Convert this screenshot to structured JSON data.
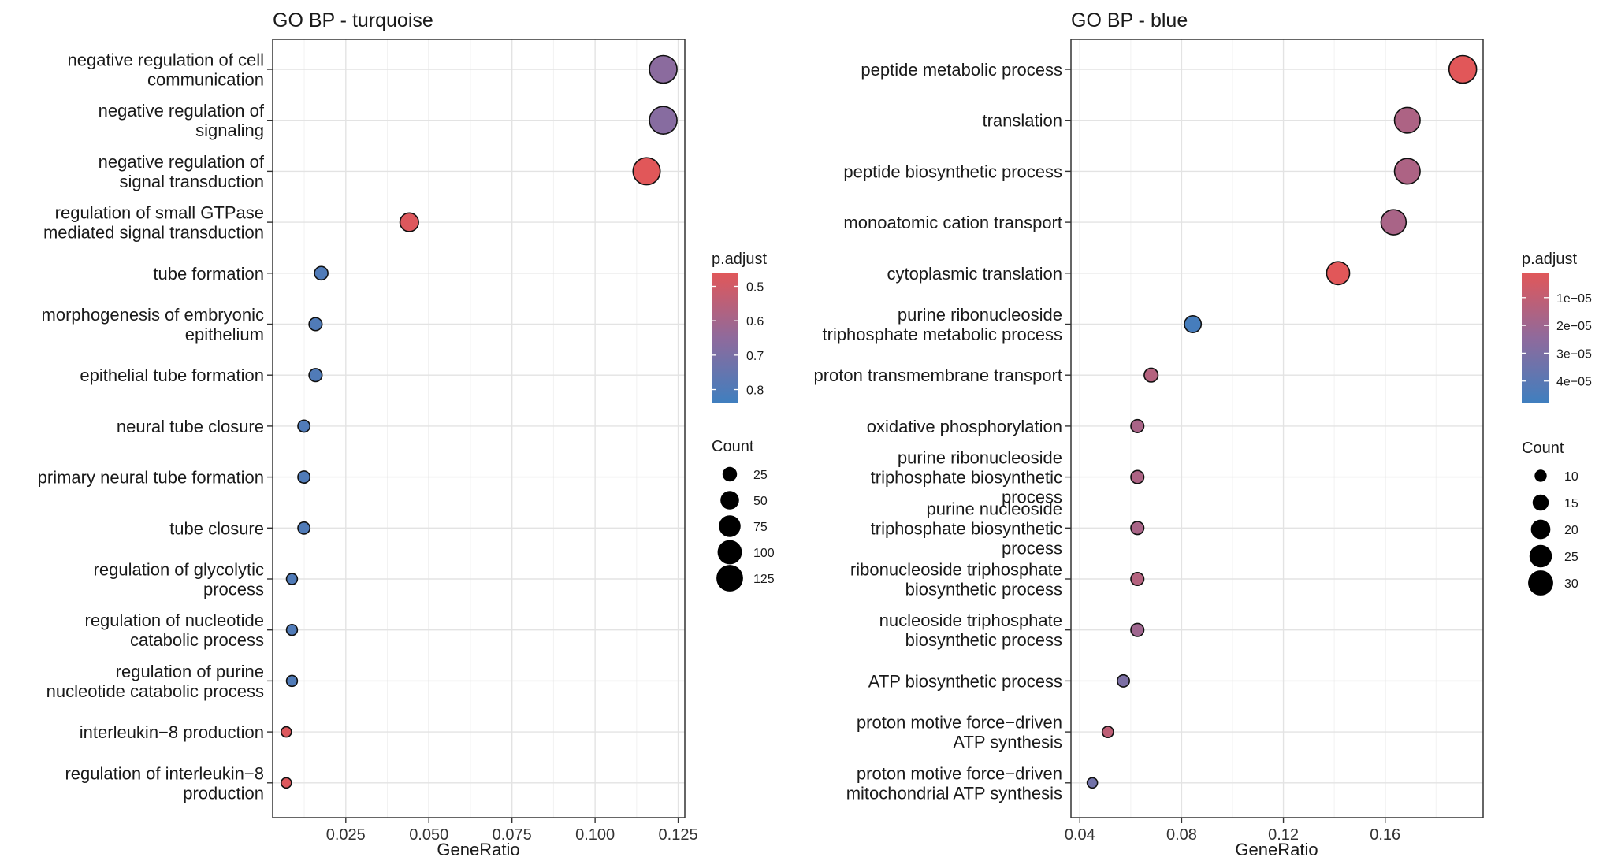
{
  "chart_data": [
    {
      "type": "scatter",
      "title": "GO BP - turquoise",
      "xlabel": "GeneRatio",
      "ylabel": "",
      "xlim": [
        0.003,
        0.127
      ],
      "xticks": [
        0.025,
        0.05,
        0.075,
        0.1,
        0.125
      ],
      "xtick_labels": [
        "0.025",
        "0.050",
        "0.075",
        "0.100",
        "0.125"
      ],
      "grid": true,
      "categories": [
        "negative regulation of cell\ncommunication",
        "negative regulation of\nsignaling",
        "negative regulation of\nsignal transduction",
        "regulation of small GTPase\nmediated signal transduction",
        "tube formation",
        "morphogenesis of embryonic\nepithelium",
        "epithelial tube formation",
        "neural tube closure",
        "primary neural tube formation",
        "tube closure",
        "regulation of glycolytic\nprocess",
        "regulation of nucleotide\ncatabolic process",
        "regulation of purine\nnucleotide catabolic process",
        "interleukin−8 production",
        "regulation of interleukin−8\nproduction"
      ],
      "gene_ratio": [
        0.1205,
        0.1205,
        0.1155,
        0.0441,
        0.0176,
        0.0159,
        0.0159,
        0.0124,
        0.0124,
        0.0124,
        0.0088,
        0.0088,
        0.0088,
        0.0071,
        0.0071
      ],
      "count": [
        136,
        136,
        131,
        50,
        20,
        18,
        18,
        14,
        14,
        14,
        10,
        10,
        10,
        8,
        8
      ],
      "p_adjust": [
        0.66,
        0.67,
        0.46,
        0.47,
        0.8,
        0.8,
        0.8,
        0.8,
        0.8,
        0.8,
        0.8,
        0.8,
        0.8,
        0.47,
        0.47
      ],
      "legend": {
        "color_title": "p.adjust",
        "color_ticks": [
          0.5,
          0.6,
          0.7,
          0.8
        ],
        "color_tick_labels": [
          "0.5",
          "0.6",
          "0.7",
          "0.8"
        ],
        "color_range": [
          0.46,
          0.84
        ],
        "size_title": "Count",
        "size_values": [
          25,
          50,
          75,
          100,
          125
        ],
        "size_labels": [
          "25",
          "50",
          "75",
          "100",
          "125"
        ],
        "count_range": [
          8,
          136
        ],
        "position": "right"
      },
      "colors": {
        "low": "#e15759",
        "high": "#3f7fbf",
        "mid": "#8f6a9c"
      }
    },
    {
      "type": "scatter",
      "title": "GO BP - blue",
      "xlabel": "GeneRatio",
      "ylabel": "",
      "xlim": [
        0.0365,
        0.1985
      ],
      "xticks": [
        0.04,
        0.08,
        0.12,
        0.16
      ],
      "xtick_labels": [
        "0.04",
        "0.08",
        "0.12",
        "0.16"
      ],
      "grid": true,
      "categories": [
        "peptide metabolic process",
        "translation",
        "peptide biosynthetic process",
        "monoatomic cation transport",
        "cytoplasmic translation",
        "purine ribonucleoside\ntriphosphate metabolic process",
        "proton transmembrane transport",
        "oxidative phosphorylation",
        "purine ribonucleoside\ntriphosphate biosynthetic\nprocess",
        "purine nucleoside\ntriphosphate biosynthetic\nprocess",
        "ribonucleoside triphosphate\nbiosynthetic process",
        "nucleoside triphosphate\nbiosynthetic process",
        "ATP biosynthetic process",
        "proton motive force−driven\nATP synthesis",
        "proton motive force−driven\nmitochondrial ATP synthesis"
      ],
      "gene_ratio": [
        0.1905,
        0.1687,
        0.1687,
        0.1633,
        0.1415,
        0.0844,
        0.068,
        0.0626,
        0.0626,
        0.0626,
        0.0626,
        0.0626,
        0.0571,
        0.051,
        0.0449
      ],
      "count": [
        35,
        31,
        31,
        30,
        26,
        16,
        12,
        11,
        11,
        11,
        11,
        11,
        10,
        9,
        8
      ],
      "p_adjust": [
        1e-06,
        1.6e-05,
        1.6e-05,
        1.7e-05,
        1e-06,
        4.6e-05,
        1.4e-05,
        1.7e-05,
        1.6e-05,
        1.7e-05,
        1.4e-05,
        2e-05,
        3e-05,
        1.1e-05,
        3.3e-05
      ],
      "legend": {
        "color_title": "p.adjust",
        "color_ticks": [
          1e-05,
          2e-05,
          3e-05,
          4e-05
        ],
        "color_tick_labels": [
          "1e−05",
          "2e−05",
          "3e−05",
          "4e−05"
        ],
        "color_range": [
          1e-06,
          4.8e-05
        ],
        "size_title": "Count",
        "size_values": [
          10,
          15,
          20,
          25,
          30
        ],
        "size_labels": [
          "10",
          "15",
          "20",
          "25",
          "30"
        ],
        "count_range": [
          8,
          35
        ],
        "position": "right"
      },
      "colors": {
        "low": "#e15759",
        "high": "#3f7fbf",
        "mid": "#8f6a9c"
      }
    }
  ]
}
